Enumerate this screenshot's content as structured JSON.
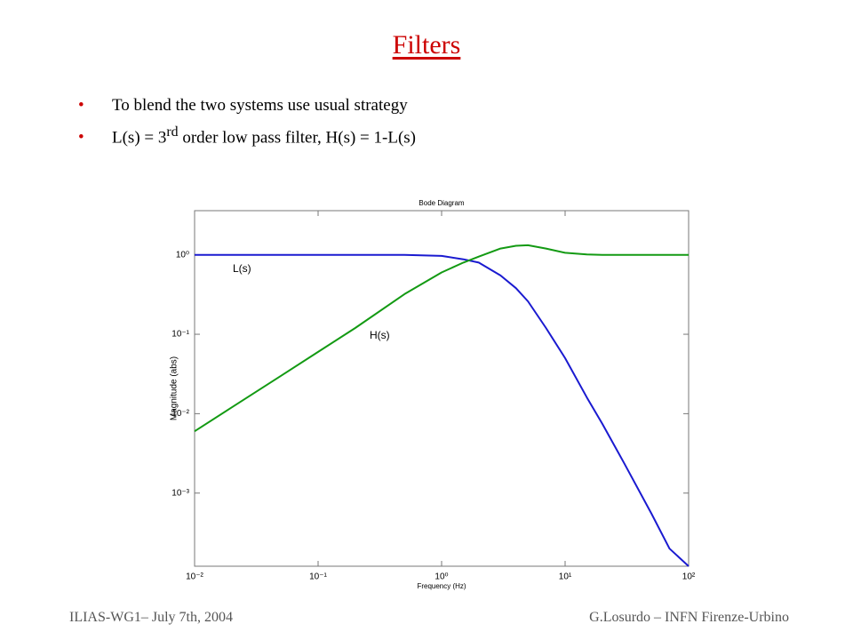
{
  "slide": {
    "title": "Filters",
    "bullets": [
      [
        "To blend the two systems use usual strategy"
      ],
      [
        "L(s) = 3",
        "rd",
        " order low pass filter, H(s) = 1-L(s)"
      ]
    ],
    "footer_left": "ILIAS-WG1– July 7th, 2004",
    "footer_right": "G.Losurdo – INFN Firenze-Urbino"
  },
  "chart_data": {
    "type": "line",
    "title": "Bode Diagram",
    "x_label": "Frequency (Hz)",
    "y_label": "Magnitude (abs)",
    "x_scale": "log",
    "y_scale": "log",
    "x": [
      0.01,
      0.02,
      0.05,
      0.1,
      0.2,
      0.5,
      1,
      1.5,
      2,
      3,
      4,
      5,
      7,
      10,
      15,
      20,
      30,
      50,
      70,
      100
    ],
    "series": [
      {
        "name": "L(s)",
        "color": "#1a1ad0",
        "values": [
          1,
          1,
          1,
          1,
          1,
          1,
          0.97,
          0.88,
          0.8,
          0.55,
          0.38,
          0.26,
          0.12,
          0.05,
          0.016,
          0.0075,
          0.0024,
          0.00055,
          0.0002,
          0.00012
        ]
      },
      {
        "name": "H(s)",
        "color": "#139a13",
        "values": [
          0.006,
          0.012,
          0.03,
          0.06,
          0.12,
          0.32,
          0.6,
          0.8,
          0.95,
          1.2,
          1.3,
          1.32,
          1.2,
          1.06,
          1.01,
          1,
          1,
          1,
          1,
          1
        ]
      }
    ],
    "xlim": [
      0.01,
      100
    ],
    "ylim": [
      0.00012,
      3.6
    ],
    "xticks": [
      {
        "value": 0.01,
        "label": "10⁻²"
      },
      {
        "value": 0.1,
        "label": "10⁻¹"
      },
      {
        "value": 1,
        "label": "10⁰"
      },
      {
        "value": 10,
        "label": "10¹"
      },
      {
        "value": 100,
        "label": "10²"
      }
    ],
    "yticks": [
      {
        "value": 0.001,
        "label": "10⁻³"
      },
      {
        "value": 0.01,
        "label": "10⁻²"
      },
      {
        "value": 0.1,
        "label": "10⁻¹"
      },
      {
        "value": 1,
        "label": "10⁰"
      }
    ]
  }
}
